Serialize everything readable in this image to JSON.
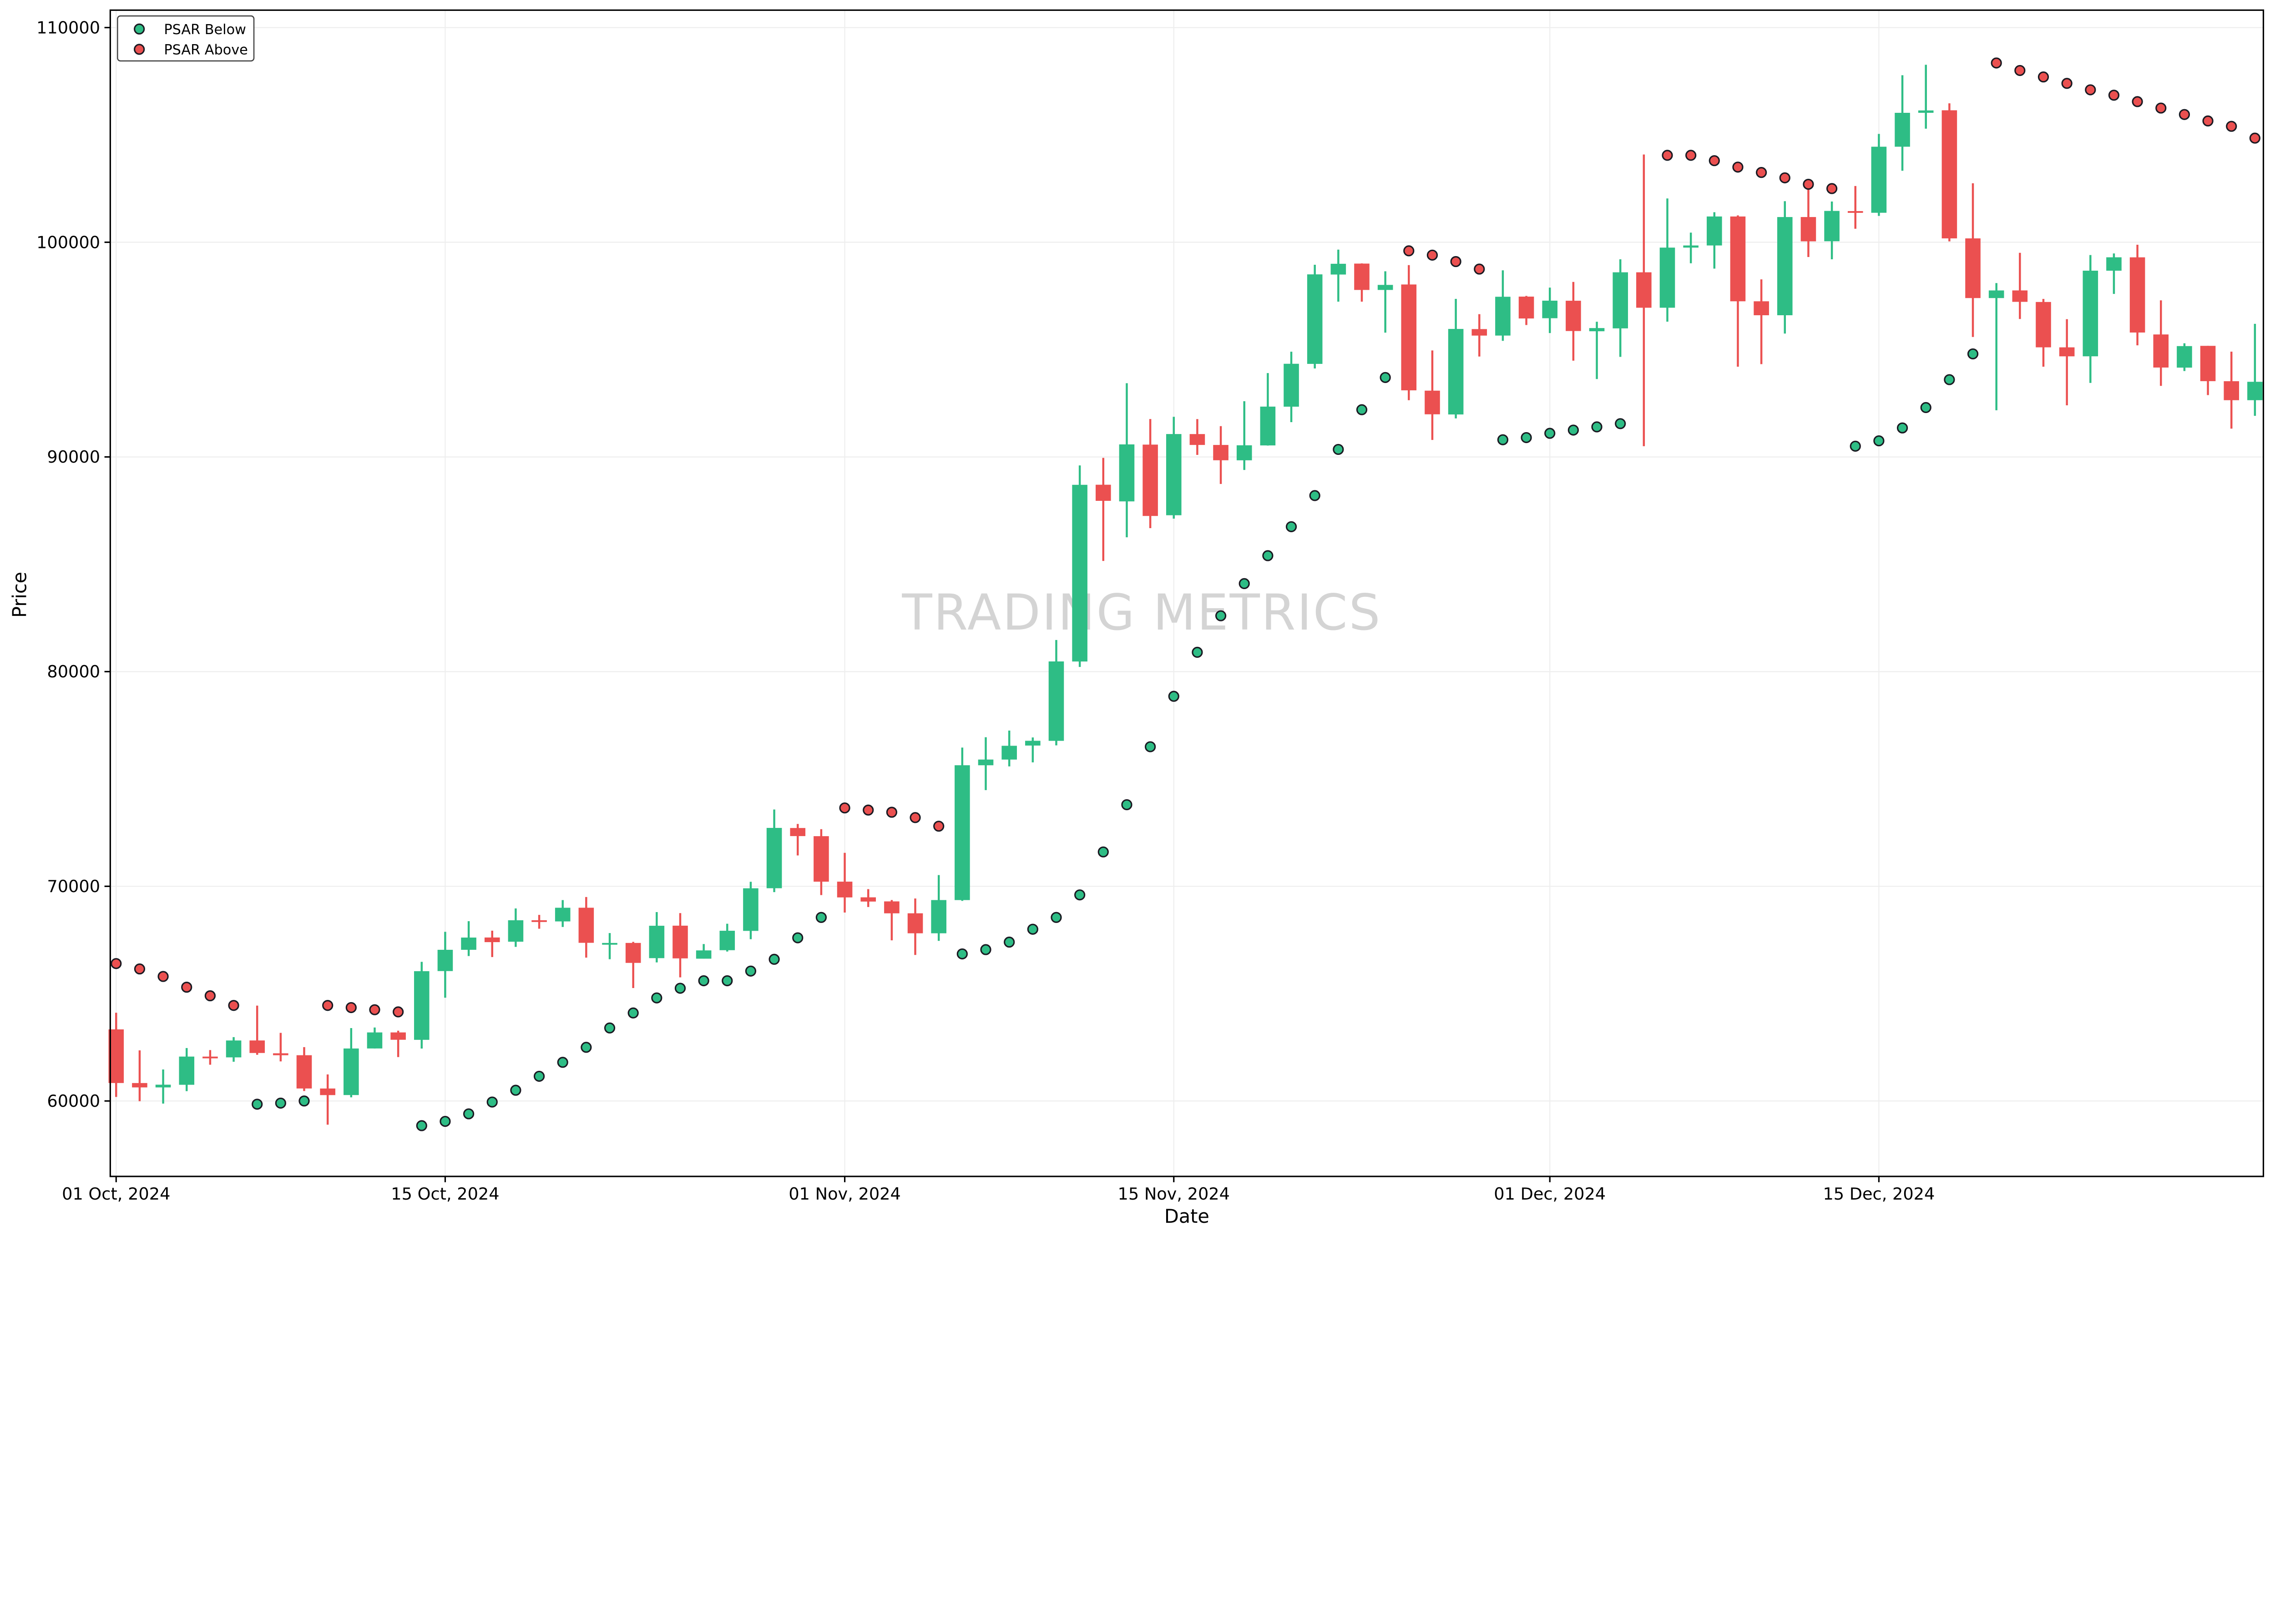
{
  "chart_data": {
    "type": "candlestick",
    "title": "",
    "xlabel": "Date",
    "ylabel": "Price",
    "ylim": [
      56486,
      110811
    ],
    "grid": true,
    "legend_placement": "top-left",
    "colors": {
      "up": "#2EBD85",
      "down": "#EB5050",
      "marker_edge": "#1a1a22"
    },
    "x_ticks": [
      {
        "date": "2024-10-01",
        "label": "01 Oct, 2024"
      },
      {
        "date": "2024-10-15",
        "label": "15 Oct, 2024"
      },
      {
        "date": "2024-11-01",
        "label": "01 Nov, 2024"
      },
      {
        "date": "2024-11-15",
        "label": "15 Nov, 2024"
      },
      {
        "date": "2024-12-01",
        "label": "01 Dec, 2024"
      },
      {
        "date": "2024-12-15",
        "label": "15 Dec, 2024"
      }
    ],
    "y_ticks": [
      "60000",
      "70000",
      "80000",
      "90000",
      "100000",
      "110000"
    ],
    "legend": [
      {
        "name": "PSAR Below",
        "color": "#2EBD85"
      },
      {
        "name": "PSAR Above",
        "color": "#EB5050"
      }
    ],
    "watermark": "TRADING METRICS",
    "columns": [
      "date",
      "open",
      "high",
      "low",
      "close"
    ],
    "ohlc": [
      [
        "2024-10-01",
        63335,
        64110,
        60189,
        60837
      ],
      [
        "2024-10-02",
        60836,
        62357,
        59989,
        60632
      ],
      [
        "2024-10-03",
        60632,
        61468,
        59878,
        60759
      ],
      [
        "2024-10-04",
        60754,
        62465,
        60459,
        62068
      ],
      [
        "2024-10-05",
        62067,
        62371,
        61689,
        62032
      ],
      [
        "2024-10-06",
        62031,
        62974,
        61827,
        62818
      ],
      [
        "2024-10-07",
        62819,
        64443,
        62152,
        62236
      ],
      [
        "2024-10-08",
        62221,
        63172,
        61843,
        62131
      ],
      [
        "2024-10-09",
        62132,
        62508,
        60463,
        60582
      ],
      [
        "2024-10-10",
        60581,
        61236,
        58895,
        60274
      ],
      [
        "2024-10-11",
        60276,
        63395,
        60170,
        62445
      ],
      [
        "2024-10-12",
        62446,
        63423,
        62446,
        63193
      ],
      [
        "2024-10-13",
        63193,
        63275,
        62044,
        62851
      ],
      [
        "2024-10-14",
        62848,
        66482,
        62442,
        66046
      ],
      [
        "2024-10-15",
        66051,
        67881,
        64809,
        67042
      ],
      [
        "2024-10-16",
        67042,
        68375,
        66751,
        67612
      ],
      [
        "2024-10-17",
        67615,
        67934,
        66703,
        67399
      ],
      [
        "2024-10-18",
        67419,
        68969,
        67178,
        68418
      ],
      [
        "2024-10-19",
        68419,
        68668,
        68024,
        68362
      ],
      [
        "2024-10-20",
        68364,
        69359,
        68105,
        69001
      ],
      [
        "2024-10-21",
        69002,
        69501,
        66678,
        67367
      ],
      [
        "2024-10-22",
        67361,
        67822,
        66602,
        67361
      ],
      [
        "2024-10-23",
        67362,
        67412,
        65260,
        66432
      ],
      [
        "2024-10-24",
        66653,
        68798,
        66454,
        68162
      ],
      [
        "2024-10-25",
        68166,
        68751,
        65758,
        66642
      ],
      [
        "2024-10-26",
        66628,
        67310,
        66628,
        67014
      ],
      [
        "2024-10-27",
        67024,
        68255,
        66962,
        67929
      ],
      [
        "2024-10-28",
        67923,
        70212,
        67535,
        69907
      ],
      [
        "2024-10-29",
        69910,
        73577,
        69729,
        72720
      ],
      [
        "2024-10-30",
        72715,
        72905,
        71436,
        72339
      ],
      [
        "2024-10-31",
        72335,
        72662,
        69591,
        70215
      ],
      [
        "2024-11-01",
        70217,
        71559,
        68779,
        69482
      ],
      [
        "2024-11-02",
        69486,
        69868,
        69035,
        69289
      ],
      [
        "2024-11-03",
        69297,
        69361,
        67482,
        68741
      ],
      [
        "2024-11-04",
        68742,
        69433,
        66803,
        67811
      ],
      [
        "2024-11-05",
        67811,
        70522,
        67458,
        69359
      ],
      [
        "2024-11-06",
        69358,
        76461,
        69322,
        75639
      ],
      [
        "2024-11-07",
        75638,
        76943,
        74480,
        75904
      ],
      [
        "2024-11-08",
        75903,
        77253,
        75584,
        76545
      ],
      [
        "2024-11-09",
        76556,
        76932,
        75773,
        76778
      ],
      [
        "2024-11-10",
        76775,
        81474,
        76565,
        80474
      ],
      [
        "2024-11-11",
        80471,
        89604,
        80217,
        88701
      ],
      [
        "2024-11-12",
        88705,
        89956,
        85155,
        87955
      ],
      [
        "2024-11-13",
        87929,
        93434,
        86256,
        90584
      ],
      [
        "2024-11-14",
        90574,
        91765,
        86682,
        87250
      ],
      [
        "2024-11-15",
        87284,
        91868,
        87125,
        91066
      ],
      [
        "2024-11-16",
        91065,
        91763,
        90094,
        90558
      ],
      [
        "2024-11-17",
        90558,
        91434,
        88741,
        89845
      ],
      [
        "2024-11-18",
        89843,
        92596,
        89393,
        90542
      ],
      [
        "2024-11-19",
        90536,
        93906,
        90530,
        92344
      ],
      [
        "2024-11-20",
        92341,
        94903,
        91619,
        94339
      ],
      [
        "2024-11-21",
        94334,
        98951,
        94121,
        98504
      ],
      [
        "2024-11-22",
        98496,
        99655,
        97232,
        98997
      ],
      [
        "2024-11-23",
        99006,
        99014,
        97233,
        97778
      ],
      [
        "2024-11-24",
        97778,
        98647,
        95788,
        98013
      ],
      [
        "2024-11-25",
        98033,
        98935,
        92642,
        93102
      ],
      [
        "2024-11-26",
        93087,
        94961,
        90791,
        91986
      ],
      [
        "2024-11-27",
        91978,
        97362,
        91794,
        95962
      ],
      [
        "2024-11-28",
        95955,
        96651,
        94677,
        95652
      ],
      [
        "2024-11-29",
        95653,
        98693,
        95408,
        97461
      ],
      [
        "2024-11-30",
        97468,
        97499,
        96144,
        96449
      ],
      [
        "2024-12-01",
        96461,
        97888,
        95770,
        97279
      ],
      [
        "2024-12-02",
        97276,
        98152,
        94483,
        95865
      ],
      [
        "2024-12-03",
        95854,
        96297,
        93629,
        96002
      ],
      [
        "2024-12-04",
        95988,
        99207,
        94660,
        98600
      ],
      [
        "2024-12-05",
        98600,
        104088,
        90500,
        96950
      ],
      [
        "2024-12-06",
        96950,
        102039,
        96300,
        99750
      ],
      [
        "2024-12-07",
        99750,
        100449,
        99020,
        99850
      ],
      [
        "2024-12-08",
        99850,
        101399,
        98771,
        101200
      ],
      [
        "2024-12-09",
        101200,
        101250,
        94202,
        97250
      ],
      [
        "2024-12-10",
        97250,
        98270,
        94321,
        96600
      ],
      [
        "2024-12-11",
        96600,
        101913,
        95747,
        101174
      ],
      [
        "2024-12-12",
        101174,
        102541,
        99311,
        100043
      ],
      [
        "2024-12-13",
        100047,
        101896,
        99206,
        101459
      ],
      [
        "2024-12-14",
        101451,
        102619,
        100627,
        101372
      ],
      [
        "2024-12-15",
        101373,
        105047,
        101227,
        104450
      ],
      [
        "2024-12-16",
        104450,
        107780,
        103330,
        106029
      ],
      [
        "2024-12-17",
        106030,
        108268,
        105291,
        106140
      ],
      [
        "2024-12-18",
        106147,
        106470,
        100041,
        100180
      ],
      [
        "2024-12-19",
        100180,
        102748,
        95587,
        97400
      ],
      [
        "2024-12-20",
        97400,
        98098,
        92175,
        97755
      ],
      [
        "2024-12-21",
        97756,
        99507,
        96426,
        97224
      ],
      [
        "2024-12-22",
        97218,
        97360,
        94203,
        95105
      ],
      [
        "2024-12-23",
        95104,
        96416,
        92403,
        94686
      ],
      [
        "2024-12-24",
        94687,
        99404,
        93448,
        98676
      ],
      [
        "2024-12-25",
        98675,
        99478,
        97593,
        99299
      ],
      [
        "2024-12-26",
        99297,
        99884,
        95199,
        95795
      ],
      [
        "2024-12-27",
        95705,
        97294,
        93310,
        94164
      ],
      [
        "2024-12-28",
        94160,
        95294,
        94001,
        95163
      ],
      [
        "2024-12-29",
        95174,
        95175,
        92882,
        93530
      ],
      [
        "2024-12-30",
        93527,
        94904,
        91317,
        92643
      ],
      [
        "2024-12-31",
        92643,
        96200,
        91914,
        93500
      ]
    ],
    "psar_below": [
      null,
      null,
      null,
      null,
      null,
      null,
      59850,
      59900,
      60000,
      null,
      null,
      null,
      null,
      58850,
      59050,
      59400,
      59950,
      60500,
      61150,
      61800,
      62500,
      63400,
      64100,
      64800,
      65250,
      65600,
      65600,
      66050,
      66600,
      67600,
      68550,
      null,
      null,
      null,
      null,
      null,
      66850,
      67050,
      67400,
      68000,
      68550,
      69600,
      71600,
      73800,
      76500,
      78850,
      80900,
      82600,
      84100,
      85400,
      86750,
      88200,
      90350,
      92200,
      93700,
      null,
      null,
      null,
      null,
      90800,
      90900,
      91100,
      91250,
      91400,
      91550,
      null,
      null,
      null,
      null,
      null,
      null,
      null,
      null,
      null,
      90500,
      90750,
      91350,
      92300,
      93600,
      94800,
      null,
      null,
      null,
      null,
      null,
      null,
      null,
      null,
      null,
      null,
      null,
      null
    ],
    "psar_above": [
      66400,
      66150,
      65800,
      65300,
      64900,
      64450,
      null,
      null,
      null,
      64450,
      64350,
      64250,
      64150,
      null,
      null,
      null,
      null,
      null,
      null,
      null,
      null,
      null,
      null,
      null,
      null,
      null,
      null,
      null,
      null,
      null,
      null,
      73650,
      73550,
      73450,
      73200,
      72800,
      null,
      null,
      null,
      null,
      null,
      null,
      null,
      null,
      null,
      null,
      null,
      null,
      null,
      null,
      null,
      null,
      null,
      null,
      null,
      99600,
      99400,
      99100,
      98750,
      null,
      null,
      null,
      null,
      null,
      null,
      null,
      104050,
      104050,
      103800,
      103500,
      103250,
      103000,
      102700,
      102500,
      null,
      null,
      null,
      null,
      null,
      null,
      108350,
      108000,
      107700,
      107400,
      107100,
      106850,
      106550,
      106250,
      105950,
      105650,
      105400,
      104850
    ]
  }
}
